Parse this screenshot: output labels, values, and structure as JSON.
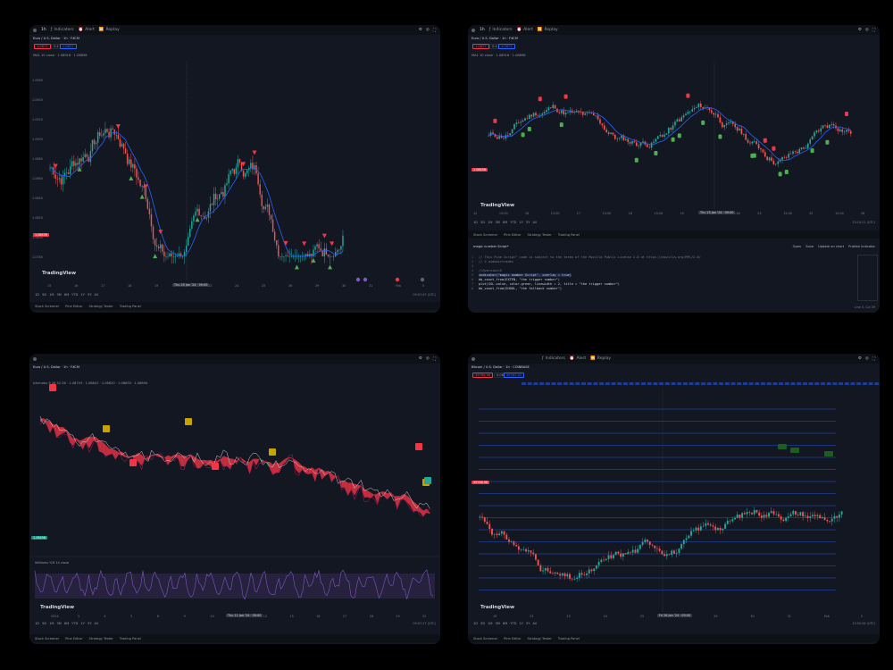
{
  "colors": {
    "bg": "#131722",
    "up": "#26a69a",
    "down": "#ef5350",
    "ma": "#2962ff",
    "tri_up": "#4caf50",
    "tri_down": "#f23645"
  },
  "p1": {
    "symbol": "Euro / U.S. Dollar · 1h · FXCM",
    "interval": "1h",
    "indicators": "Indicators",
    "alert": "Alert",
    "replay": "Replay",
    "tags": [
      "1.0877",
      "0.4",
      "1.0877"
    ],
    "legend": "MA1 10 close · 1.08916 · 1.08898",
    "price_tag": "1.08456",
    "yticks": [
      "1.0960",
      "1.0940",
      "1.0920",
      "1.0900",
      "1.0880",
      "1.0860",
      "1.0840",
      "1.0820",
      "1.0800",
      "1.0780"
    ],
    "xticks": [
      "15",
      "16",
      "17",
      "18",
      "19",
      "22",
      "23",
      "24",
      "25",
      "26",
      "29",
      "30",
      "31",
      "Feb",
      "5"
    ],
    "crosshair_x": "Thu 25 Jan '24 · 09:00",
    "timeframes": [
      "1D",
      "5D",
      "1M",
      "3M",
      "6M",
      "YTD",
      "1Y",
      "5Y",
      "All"
    ],
    "logo": "TradingView",
    "time": "09:07:47 (UTC)",
    "bottom": [
      "Stock Screener",
      "Pine Editor",
      "Strategy Tester",
      "Trading Panel"
    ]
  },
  "p2": {
    "symbol": "Euro / U.S. Dollar · 1h · FXCM",
    "interval": "1h",
    "indicators": "Indicators",
    "alert": "Alert",
    "replay": "Replay",
    "tags": [
      "1.0877",
      "0.4",
      "1.0877"
    ],
    "legend": "MA1 10 close · 1.08916 · 1.08898",
    "price_tag": "1.08456",
    "xticks": [
      "12",
      "15:00",
      "16",
      "15:00",
      "17",
      "15:00",
      "18",
      "15:00",
      "19",
      "22",
      "15:00",
      "23",
      "15:00",
      "25",
      "15:00",
      "26"
    ],
    "crosshair_x": "Thu 25 Jan '24 · 09:00",
    "time": "23:10:21 (UTC)",
    "timeframes": [
      "1D",
      "5D",
      "1M",
      "3M",
      "6M",
      "YTD",
      "1Y",
      "5Y",
      "All"
    ],
    "logo": "TradingView",
    "bottom": [
      "Stock Screener",
      "Pine Editor",
      "Strategy Tester",
      "Trading Panel"
    ],
    "script_name": "magic number Script*",
    "editor_actions": [
      "Open",
      "Save",
      "Update on chart",
      "Publish indicator"
    ],
    "code": [
      "// This Pine Script™ code is subject to the terms of the Mozilla Public License 2.0 at https://mozilla.org/MPL/2.0/",
      "// © ozdemirtrades",
      "",
      "//@version=5",
      "indicator(\"magic number Script\", overlay = true)",
      "bb_count_from(EXTEN, \"the trigger number\")",
      "plot(SSL.value, color.green, linewidth = 2, title = \"the trigger number\")",
      "bb_count_from(SHOOL, \"the fallback number\")"
    ],
    "status": "Line 5, Col 39"
  },
  "p3": {
    "symbol": "Euro / U.S. Dollar · 1h · FXCM",
    "legend": "Ichimoku 9 26 52 26 · 1.08743 · 1.08841 · 1.08620 · 1.08835 · 1.08894",
    "price_tag": "1.08456",
    "labels": [
      "Sell",
      "Buy",
      "Sell",
      "Buy",
      "Sell",
      "Buy",
      "Sell",
      "Buy"
    ],
    "osc_title": "Williams %R 14 close",
    "xticks": [
      "2024",
      "3",
      "4",
      "5",
      "8",
      "9",
      "10",
      "11",
      "12",
      "15",
      "16",
      "17",
      "18",
      "19",
      "22"
    ],
    "crosshair_x": "Thu 11 Jan '24 · 09:00",
    "time": "09:07:17 (UTC)",
    "timeframes": [
      "1D",
      "5D",
      "1M",
      "3M",
      "6M",
      "YTD",
      "1Y",
      "5Y",
      "All"
    ],
    "logo": "TradingView",
    "bottom": [
      "Stock Screener",
      "Pine Editor",
      "Strategy Tester",
      "Trading Panel"
    ]
  },
  "p4": {
    "symbol": "Bitcoin / U.S. Dollar · 1h · COINBASE",
    "indicators": "Indicators",
    "alert": "Alert",
    "replay": "Replay",
    "tags": [
      "39766.96",
      "0.06",
      "39767.02"
    ],
    "price_tag": "39766.96",
    "level_labels": [
      "Long",
      "Long",
      "Long"
    ],
    "xticks": [
      "19",
      "22",
      "23",
      "24",
      "25",
      "26",
      "29",
      "30",
      "31",
      "Feb",
      "2"
    ],
    "crosshair_x": "Fri 26 Jan '24 · 09:00",
    "time": "23:50:56 (UTC)",
    "timeframes": [
      "1D",
      "5D",
      "1M",
      "3M",
      "6M",
      "YTD",
      "1Y",
      "5Y",
      "All"
    ],
    "logo": "TradingView",
    "bottom": [
      "Stock Screener",
      "Pine Editor",
      "Strategy Tester",
      "Trading Panel"
    ]
  }
}
